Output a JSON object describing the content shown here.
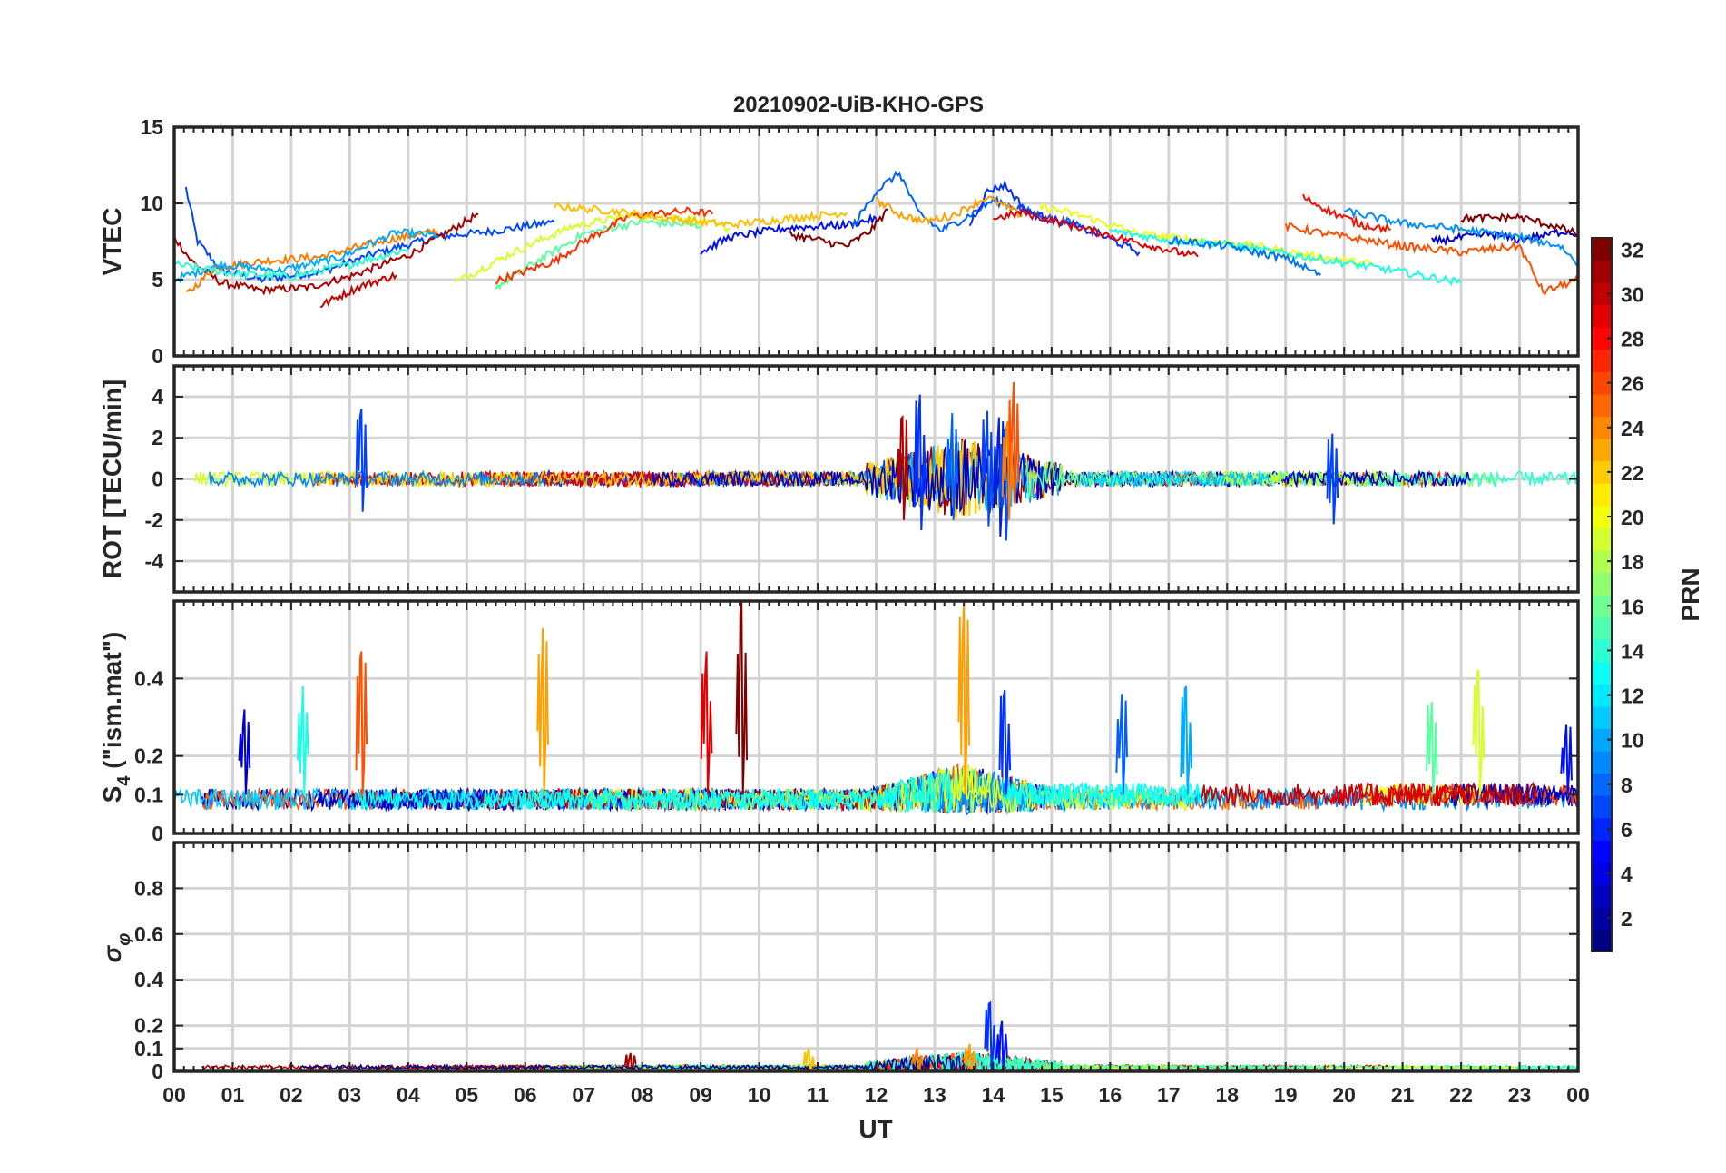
{
  "chart_data": {
    "type": "line",
    "title": "20210902-UiB-KHO-GPS",
    "xlabel": "UT",
    "x_tick_labels": [
      "00",
      "01",
      "02",
      "03",
      "04",
      "05",
      "06",
      "07",
      "08",
      "09",
      "10",
      "11",
      "12",
      "13",
      "14",
      "15",
      "16",
      "17",
      "18",
      "19",
      "20",
      "21",
      "22",
      "23",
      "00"
    ],
    "xlim": [
      0,
      24
    ],
    "colorbar": {
      "label": "PRN",
      "range": [
        1,
        32
      ],
      "tick_labels": [
        "2",
        "4",
        "6",
        "8",
        "10",
        "12",
        "14",
        "16",
        "18",
        "20",
        "22",
        "24",
        "26",
        "28",
        "30",
        "32"
      ],
      "tick_values": [
        2,
        4,
        6,
        8,
        10,
        12,
        14,
        16,
        18,
        20,
        22,
        24,
        26,
        28,
        30,
        32
      ],
      "colormap": "jet"
    },
    "panels": [
      {
        "id": "vtec",
        "ylabel": "VTEC",
        "ylim": [
          0,
          15
        ],
        "ytick_values": [
          0,
          5,
          10,
          15
        ],
        "ytick_labels": [
          "0",
          "5",
          "10",
          "15"
        ],
        "series": [
          {
            "prn": 3,
            "color": "#0048ff",
            "points": [
              [
                0.2,
                11
              ],
              [
                0.4,
                7.5
              ],
              [
                0.8,
                5.6
              ],
              [
                1.5,
                5.0
              ],
              [
                2.5,
                5.5
              ],
              [
                3.5,
                6.8
              ],
              [
                4.5,
                7.8
              ],
              [
                5.5,
                8.2
              ],
              [
                6.5,
                8.8
              ]
            ]
          },
          {
            "prn": 31,
            "color": "#a80000",
            "points": [
              [
                0.0,
                7.8
              ],
              [
                0.3,
                6.2
              ],
              [
                0.8,
                4.8
              ],
              [
                1.5,
                4.3
              ],
              [
                2.3,
                4.5
              ],
              [
                3.0,
                5.2
              ],
              [
                4.0,
                6.6
              ],
              [
                5.2,
                9.3
              ]
            ]
          },
          {
            "prn": 24,
            "color": "#ff7a00",
            "points": [
              [
                0.2,
                4.0
              ],
              [
                0.7,
                5.8
              ],
              [
                1.5,
                6.2
              ],
              [
                2.5,
                6.5
              ],
              [
                3.5,
                7.5
              ],
              [
                4.5,
                8.2
              ]
            ]
          },
          {
            "prn": 12,
            "color": "#00aaff",
            "points": [
              [
                0.0,
                5.0
              ],
              [
                0.8,
                6.0
              ],
              [
                1.8,
                5.6
              ],
              [
                2.8,
                6.4
              ],
              [
                3.8,
                8.1
              ],
              [
                4.5,
                7.9
              ]
            ]
          },
          {
            "prn": 15,
            "color": "#2fffd0",
            "points": [
              [
                0.0,
                6.0
              ],
              [
                1.0,
                5.4
              ],
              [
                2.0,
                5.2
              ],
              [
                3.0,
                6.0
              ],
              [
                4.0,
                7.0
              ]
            ]
          },
          {
            "prn": 30,
            "color": "#c80000",
            "points": [
              [
                2.5,
                3.3
              ],
              [
                3.2,
                4.6
              ],
              [
                3.8,
                5.3
              ]
            ]
          },
          {
            "prn": 20,
            "color": "#d6ff29",
            "points": [
              [
                4.8,
                4.8
              ],
              [
                5.8,
                6.8
              ],
              [
                6.8,
                8.5
              ],
              [
                7.8,
                9.2
              ],
              [
                8.8,
                9.0
              ],
              [
                9.5,
                8.3
              ]
            ]
          },
          {
            "prn": 16,
            "color": "#5cff9f",
            "points": [
              [
                5.5,
                4.5
              ],
              [
                6.2,
                6.2
              ],
              [
                7.0,
                8.0
              ],
              [
                8.0,
                8.8
              ],
              [
                9.0,
                8.5
              ]
            ]
          },
          {
            "prn": 26,
            "color": "#ff2e00",
            "points": [
              [
                5.5,
                4.9
              ],
              [
                6.5,
                6.2
              ],
              [
                7.0,
                7.5
              ],
              [
                7.8,
                9.2
              ],
              [
                8.8,
                9.5
              ],
              [
                9.2,
                9.3
              ]
            ]
          },
          {
            "prn": 22,
            "color": "#ffc000",
            "points": [
              [
                6.5,
                9.8
              ],
              [
                7.5,
                9.5
              ],
              [
                8.5,
                9.0
              ],
              [
                9.5,
                8.6
              ],
              [
                10.5,
                9.0
              ],
              [
                11.5,
                9.4
              ]
            ]
          },
          {
            "prn": 2,
            "color": "#0010ef",
            "points": [
              [
                9.0,
                6.8
              ],
              [
                9.5,
                7.8
              ],
              [
                10.5,
                8.4
              ],
              [
                11.5,
                8.6
              ],
              [
                12.0,
                9.0
              ]
            ]
          },
          {
            "prn": 32,
            "color": "#800000",
            "points": [
              [
                10.5,
                8.0
              ],
              [
                11.0,
                7.6
              ],
              [
                11.5,
                7.2
              ],
              [
                11.9,
                8.2
              ],
              [
                12.2,
                9.6
              ]
            ]
          },
          {
            "prn": 5,
            "color": "#0060ff",
            "points": [
              [
                11.6,
                8.5
              ],
              [
                12.0,
                10.8
              ],
              [
                12.4,
                12.0
              ],
              [
                12.7,
                9.5
              ],
              [
                13.1,
                8.2
              ],
              [
                13.5,
                9.0
              ],
              [
                14.0,
                10.2
              ],
              [
                14.5,
                9.6
              ],
              [
                15.0,
                9.0
              ],
              [
                15.5,
                8.6
              ]
            ]
          },
          {
            "prn": 4,
            "color": "#0030ff",
            "points": [
              [
                13.6,
                8.6
              ],
              [
                13.9,
                10.8
              ],
              [
                14.2,
                11.2
              ],
              [
                14.6,
                9.4
              ],
              [
                15.2,
                8.7
              ],
              [
                15.8,
                8.0
              ],
              [
                16.5,
                6.8
              ]
            ]
          },
          {
            "prn": 23,
            "color": "#ffa000",
            "points": [
              [
                12.0,
                10.2
              ],
              [
                12.4,
                9.3
              ],
              [
                12.8,
                8.8
              ],
              [
                13.3,
                9.2
              ],
              [
                13.9,
                10.4
              ],
              [
                14.5,
                9.2
              ]
            ]
          },
          {
            "prn": 29,
            "color": "#e10000",
            "points": [
              [
                14.0,
                9.0
              ],
              [
                14.5,
                9.4
              ],
              [
                15.5,
                8.4
              ],
              [
                16.5,
                7.4
              ],
              [
                17.5,
                6.5
              ]
            ]
          },
          {
            "prn": 19,
            "color": "#ebff14",
            "points": [
              [
                14.8,
                9.8
              ],
              [
                15.5,
                9.2
              ],
              [
                16.5,
                8.0
              ],
              [
                17.5,
                7.6
              ],
              [
                18.5,
                7.2
              ],
              [
                19.5,
                6.5
              ],
              [
                20.5,
                6.0
              ]
            ]
          },
          {
            "prn": 14,
            "color": "#1dffe2",
            "points": [
              [
                16.0,
                8.2
              ],
              [
                17.0,
                7.6
              ],
              [
                18.0,
                7.3
              ],
              [
                19.0,
                6.7
              ],
              [
                20.0,
                6.1
              ],
              [
                21.0,
                5.5
              ],
              [
                22.0,
                4.8
              ]
            ]
          },
          {
            "prn": 7,
            "color": "#0070ff",
            "points": [
              [
                17.0,
                7.6
              ],
              [
                18.0,
                7.2
              ],
              [
                19.0,
                6.4
              ],
              [
                19.6,
                5.3
              ]
            ]
          },
          {
            "prn": 28,
            "color": "#f51000",
            "points": [
              [
                19.3,
                10.4
              ],
              [
                19.8,
                9.4
              ],
              [
                20.3,
                8.6
              ],
              [
                20.8,
                8.3
              ]
            ]
          },
          {
            "prn": 25,
            "color": "#ff5000",
            "points": [
              [
                19.0,
                8.5
              ],
              [
                20.0,
                7.8
              ],
              [
                21.0,
                7.2
              ],
              [
                22.0,
                6.8
              ],
              [
                23.0,
                7.2
              ],
              [
                23.4,
                4.2
              ],
              [
                24.0,
                5.0
              ]
            ]
          },
          {
            "prn": 1,
            "color": "#0000cc",
            "points": [
              [
                21.5,
                7.5
              ],
              [
                22.5,
                8.0
              ],
              [
                23.0,
                7.6
              ],
              [
                23.8,
                8.2
              ],
              [
                24.0,
                7.9
              ]
            ]
          },
          {
            "prn": 32,
            "color": "#800000",
            "points": [
              [
                22.0,
                9.0
              ],
              [
                23.0,
                9.1
              ],
              [
                23.5,
                8.6
              ],
              [
                24.0,
                8.0
              ]
            ]
          },
          {
            "prn": 10,
            "color": "#0090ff",
            "points": [
              [
                20.0,
                9.5
              ],
              [
                21.0,
                8.7
              ],
              [
                22.0,
                8.3
              ],
              [
                23.0,
                7.8
              ],
              [
                23.7,
                7.2
              ],
              [
                24.0,
                6.0
              ]
            ]
          }
        ]
      },
      {
        "id": "rot",
        "ylabel": "ROT [TECU/min]",
        "ylim": [
          -5.5,
          5.5
        ],
        "ytick_values": [
          -4,
          -2,
          0,
          2,
          4
        ],
        "ytick_labels": [
          "-4",
          "-2",
          "0",
          "2",
          "4"
        ],
        "spikes": [
          {
            "t": 3.2,
            "lo": -1.6,
            "hi": 3.4,
            "color": "#0040ff"
          },
          {
            "t": 12.75,
            "lo": -2.5,
            "hi": 4.1,
            "color": "#0030ff"
          },
          {
            "t": 12.45,
            "lo": -2.0,
            "hi": 3.0,
            "color": "#a80000"
          },
          {
            "t": 13.3,
            "lo": -2.0,
            "hi": 3.2,
            "color": "#0060ff"
          },
          {
            "t": 13.9,
            "lo": -2.3,
            "hi": 3.3,
            "color": "#0040ff"
          },
          {
            "t": 14.1,
            "lo": -2.8,
            "hi": 3.0,
            "color": "#0020dd"
          },
          {
            "t": 14.2,
            "lo": -3.0,
            "hi": 2.4,
            "color": "#0050ff"
          },
          {
            "t": 14.35,
            "lo": -1.2,
            "hi": 4.7,
            "color": "#ff5000"
          },
          {
            "t": 14.25,
            "lo": -2.0,
            "hi": 2.8,
            "color": "#ff8000"
          },
          {
            "t": 19.8,
            "lo": -2.2,
            "hi": 2.2,
            "color": "#0040ff"
          }
        ]
      },
      {
        "id": "s4",
        "ylabel": "S_4 (\"ism.mat\")",
        "ylabel_sub": "4",
        "ylabel_main": "S",
        "ylabel_rest": " (\"ism.mat\")",
        "ylim": [
          0,
          0.6
        ],
        "ytick_values": [
          0,
          0.1,
          0.2,
          0.4
        ],
        "ytick_labels": [
          "0",
          "0.1",
          "0.2",
          "0.4"
        ],
        "spikes": [
          {
            "t": 1.2,
            "lo": 0.1,
            "hi": 0.32,
            "color": "#0000cc"
          },
          {
            "t": 2.2,
            "lo": 0.1,
            "hi": 0.38,
            "color": "#1dffe2"
          },
          {
            "t": 3.2,
            "lo": 0.1,
            "hi": 0.47,
            "color": "#ff5000"
          },
          {
            "t": 6.3,
            "lo": 0.1,
            "hi": 0.53,
            "color": "#ffa000"
          },
          {
            "t": 9.1,
            "lo": 0.1,
            "hi": 0.47,
            "color": "#e10000"
          },
          {
            "t": 9.7,
            "lo": 0.1,
            "hi": 0.6,
            "color": "#800000"
          },
          {
            "t": 13.5,
            "lo": 0.1,
            "hi": 0.6,
            "color": "#ffa000"
          },
          {
            "t": 14.2,
            "lo": 0.1,
            "hi": 0.37,
            "color": "#0030ff"
          },
          {
            "t": 16.2,
            "lo": 0.1,
            "hi": 0.36,
            "color": "#0060ff"
          },
          {
            "t": 17.3,
            "lo": 0.1,
            "hi": 0.38,
            "color": "#00aaff"
          },
          {
            "t": 21.5,
            "lo": 0.1,
            "hi": 0.34,
            "color": "#5cff9f"
          },
          {
            "t": 22.3,
            "lo": 0.1,
            "hi": 0.42,
            "color": "#d6ff29"
          },
          {
            "t": 23.8,
            "lo": 0.1,
            "hi": 0.28,
            "color": "#0010ef"
          }
        ]
      },
      {
        "id": "sigma",
        "ylabel": "σ_φ",
        "ylabel_main": "σ",
        "ylabel_sub": "φ",
        "ylim": [
          0,
          1
        ],
        "ytick_values": [
          0,
          0.1,
          0.2,
          0.4,
          0.6,
          0.8
        ],
        "ytick_labels": [
          "0",
          "0.1",
          "0.2",
          "0.4",
          "0.6",
          "0.8"
        ],
        "spikes": [
          {
            "t": 13.95,
            "lo": 0.0,
            "hi": 0.3,
            "color": "#0030ff"
          },
          {
            "t": 14.15,
            "lo": 0.0,
            "hi": 0.22,
            "color": "#0010ef"
          },
          {
            "t": 13.6,
            "lo": 0.0,
            "hi": 0.12,
            "color": "#ffa000"
          },
          {
            "t": 10.85,
            "lo": 0.0,
            "hi": 0.1,
            "color": "#ffc000"
          },
          {
            "t": 12.7,
            "lo": 0.0,
            "hi": 0.1,
            "color": "#ff7a00"
          },
          {
            "t": 7.8,
            "lo": 0.0,
            "hi": 0.08,
            "color": "#a80000"
          }
        ]
      }
    ]
  }
}
